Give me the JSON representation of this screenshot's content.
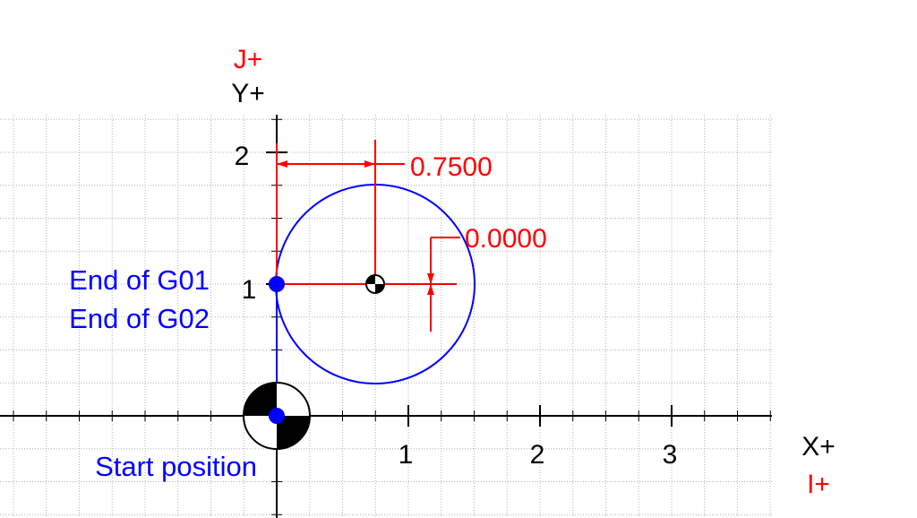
{
  "axes": {
    "x_label": "X+",
    "y_label": "Y+",
    "i_label": "I+",
    "j_label": "J+",
    "x_ticks": [
      "1",
      "2",
      "3"
    ],
    "y_ticks": [
      "1",
      "2"
    ]
  },
  "dimensions": {
    "i_offset": "0.7500",
    "j_offset": "0.0000"
  },
  "annotations": {
    "end_g01": "End of G01",
    "end_g02": "End of G02",
    "start": "Start position"
  },
  "colors": {
    "axis": "#000000",
    "grid": "#b4b4b4",
    "path": "#0000ff",
    "dimension": "#ff0000"
  },
  "icons": {
    "origin": "datum-symbol-icon",
    "center": "circle-center-icon"
  }
}
